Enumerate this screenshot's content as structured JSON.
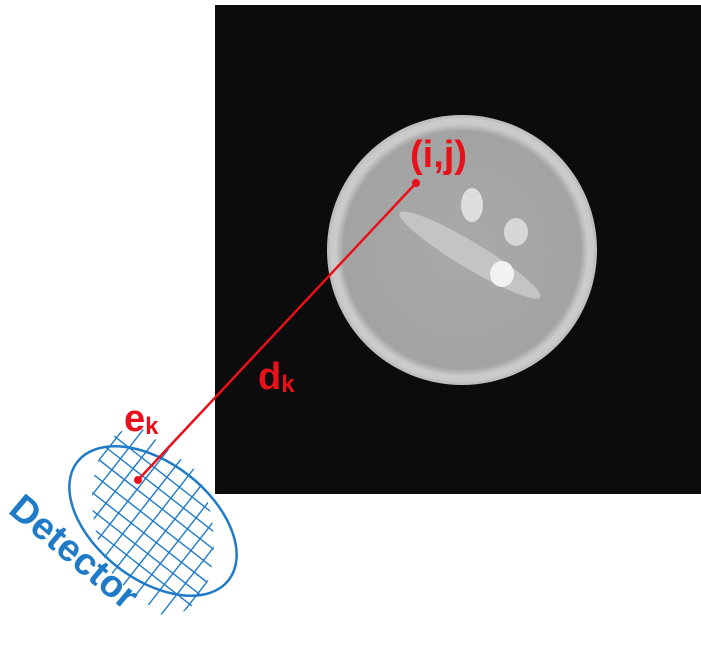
{
  "labels": {
    "pixel": "(i,j)",
    "distance_main": "d",
    "distance_sub": "k",
    "entry_main": "e",
    "entry_sub": "k",
    "detector": "Detector"
  },
  "colors": {
    "ray": "#e8101a",
    "detector": "#1f7bc8",
    "background": "#0c0c0c",
    "phantom_rim": "#c9c9c9",
    "phantom_fill": "#a6a6a6"
  }
}
